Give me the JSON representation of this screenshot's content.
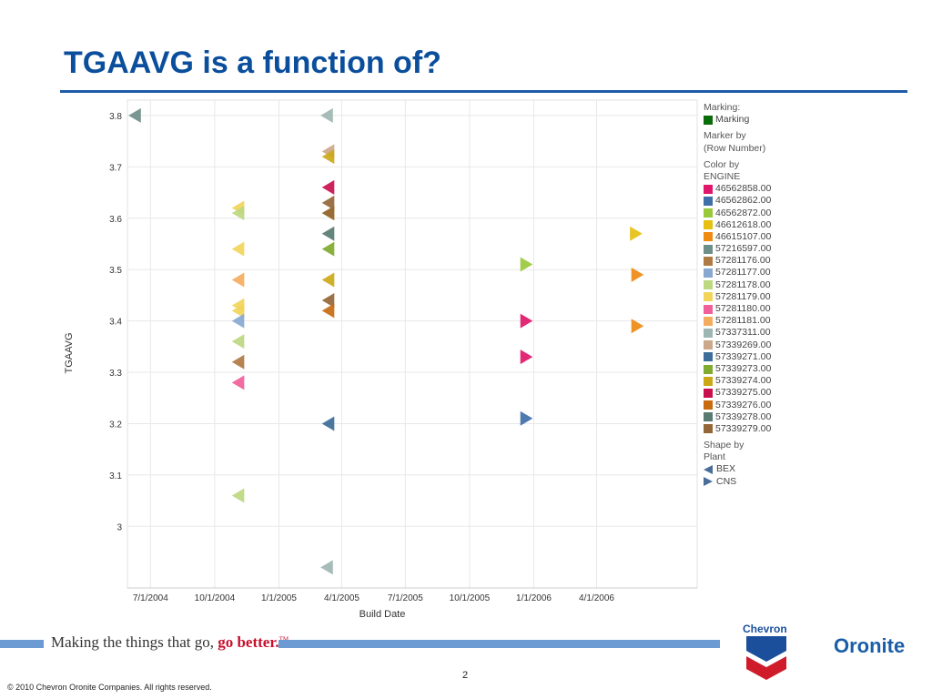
{
  "slide": {
    "title": "TGAAVG is a function of?",
    "page_number": "2",
    "copyright": "© 2010 Chevron Oronite Companies. All rights reserved.",
    "tagline_main": "Making the things that go, ",
    "tagline_accent": "go better.",
    "tagline_tm": "TM",
    "logo_chevron": "Chevron",
    "logo_oronite": "Oronite",
    "colors": {
      "title": "#0b4f9c",
      "rule": "#1f5aa6",
      "bar": "#6b9bd2",
      "accent": "#c8102e"
    }
  },
  "legend": {
    "marking_title": "Marking:",
    "marking_item": "Marking",
    "marking_color": "#0a6b0a",
    "marker_title_1": "Marker by",
    "marker_title_2": "(Row Number)",
    "color_title_1": "Color by",
    "color_title_2": "ENGINE",
    "engines": [
      {
        "label": "46562858.00",
        "color": "#e0176a"
      },
      {
        "label": "46562862.00",
        "color": "#3f6fa8"
      },
      {
        "label": "46562872.00",
        "color": "#9ac83c"
      },
      {
        "label": "46612618.00",
        "color": "#e6c012"
      },
      {
        "label": "46615107.00",
        "color": "#ef8a12"
      },
      {
        "label": "57216597.00",
        "color": "#6e8e8a"
      },
      {
        "label": "57281176.00",
        "color": "#b07a44"
      },
      {
        "label": "57281177.00",
        "color": "#88a8d0"
      },
      {
        "label": "57281178.00",
        "color": "#bcd880"
      },
      {
        "label": "57281179.00",
        "color": "#f2d45a"
      },
      {
        "label": "57281180.00",
        "color": "#f0609a"
      },
      {
        "label": "57281181.00",
        "color": "#f4ac60"
      },
      {
        "label": "57337311.00",
        "color": "#9eb6b2"
      },
      {
        "label": "57339269.00",
        "color": "#cca88a"
      },
      {
        "label": "57339271.00",
        "color": "#3d6d98"
      },
      {
        "label": "57339273.00",
        "color": "#80aa30"
      },
      {
        "label": "57339274.00",
        "color": "#cca818"
      },
      {
        "label": "57339275.00",
        "color": "#c8104e"
      },
      {
        "label": "57339276.00",
        "color": "#c86a10"
      },
      {
        "label": "57339278.00",
        "color": "#587a70"
      },
      {
        "label": "57339279.00",
        "color": "#946638"
      }
    ],
    "shape_title_1": "Shape by",
    "shape_title_2": "Plant",
    "shapes": [
      {
        "label": "BEX",
        "shape": "triangle-left",
        "color": "#4a6e9a"
      },
      {
        "label": "CNS",
        "shape": "triangle-right",
        "color": "#4a6e9a"
      }
    ]
  },
  "chart_data": {
    "type": "scatter",
    "title": "",
    "xlabel": "Build Date",
    "ylabel": "TGAAVG",
    "x_ticks": [
      "7/1/2004",
      "10/1/2004",
      "1/1/2005",
      "4/1/2005",
      "7/1/2005",
      "10/1/2005",
      "1/1/2006",
      "4/1/2006"
    ],
    "y_ticks": [
      "3",
      "3.1",
      "3.2",
      "3.3",
      "3.4",
      "3.5",
      "3.6",
      "3.7",
      "3.8"
    ],
    "ylim": [
      2.88,
      3.83
    ],
    "xlim": [
      "2004-05-29",
      "2006-08-23"
    ],
    "grid": true,
    "legend_position": "right",
    "points": [
      {
        "x": "2004-06-10",
        "y": 3.8,
        "engine": "57216597.00",
        "plant": "BEX"
      },
      {
        "x": "2004-11-05",
        "y": 3.62,
        "engine": "57281179.00",
        "plant": "BEX"
      },
      {
        "x": "2004-11-05",
        "y": 3.61,
        "engine": "57281178.00",
        "plant": "BEX"
      },
      {
        "x": "2004-11-05",
        "y": 3.54,
        "engine": "57281179.00",
        "plant": "BEX"
      },
      {
        "x": "2004-11-05",
        "y": 3.48,
        "engine": "57281181.00",
        "plant": "BEX"
      },
      {
        "x": "2004-11-05",
        "y": 3.43,
        "engine": "57281179.00",
        "plant": "BEX"
      },
      {
        "x": "2004-11-05",
        "y": 3.42,
        "engine": "57281179.00",
        "plant": "BEX"
      },
      {
        "x": "2004-11-05",
        "y": 3.4,
        "engine": "57281177.00",
        "plant": "BEX"
      },
      {
        "x": "2004-11-05",
        "y": 3.36,
        "engine": "57281178.00",
        "plant": "BEX"
      },
      {
        "x": "2004-11-05",
        "y": 3.32,
        "engine": "57281176.00",
        "plant": "BEX"
      },
      {
        "x": "2004-11-05",
        "y": 3.28,
        "engine": "57281180.00",
        "plant": "BEX"
      },
      {
        "x": "2004-11-05",
        "y": 3.06,
        "engine": "57281178.00",
        "plant": "BEX"
      },
      {
        "x": "2005-03-12",
        "y": 3.8,
        "engine": "57337311.00",
        "plant": "BEX"
      },
      {
        "x": "2005-03-14",
        "y": 3.73,
        "engine": "57339269.00",
        "plant": "BEX"
      },
      {
        "x": "2005-03-14",
        "y": 3.72,
        "engine": "57339274.00",
        "plant": "BEX"
      },
      {
        "x": "2005-03-14",
        "y": 3.66,
        "engine": "57339275.00",
        "plant": "BEX"
      },
      {
        "x": "2005-03-14",
        "y": 3.63,
        "engine": "57339279.00",
        "plant": "BEX"
      },
      {
        "x": "2005-03-14",
        "y": 3.61,
        "engine": "57339274.00",
        "plant": "BEX"
      },
      {
        "x": "2005-03-14",
        "y": 3.61,
        "engine": "57339279.00",
        "plant": "BEX"
      },
      {
        "x": "2005-03-14",
        "y": 3.57,
        "engine": "57339278.00",
        "plant": "BEX"
      },
      {
        "x": "2005-03-14",
        "y": 3.54,
        "engine": "57339273.00",
        "plant": "BEX"
      },
      {
        "x": "2005-03-14",
        "y": 3.48,
        "engine": "57339274.00",
        "plant": "BEX"
      },
      {
        "x": "2005-03-14",
        "y": 3.44,
        "engine": "57339279.00",
        "plant": "BEX"
      },
      {
        "x": "2005-03-14",
        "y": 3.42,
        "engine": "57339276.00",
        "plant": "BEX"
      },
      {
        "x": "2005-03-14",
        "y": 3.2,
        "engine": "57339271.00",
        "plant": "BEX"
      },
      {
        "x": "2005-03-12",
        "y": 2.92,
        "engine": "57337311.00",
        "plant": "BEX"
      },
      {
        "x": "2005-12-20",
        "y": 3.51,
        "engine": "46562872.00",
        "plant": "CNS"
      },
      {
        "x": "2005-12-20",
        "y": 3.4,
        "engine": "46562858.00",
        "plant": "CNS"
      },
      {
        "x": "2005-12-20",
        "y": 3.33,
        "engine": "46562858.00",
        "plant": "CNS"
      },
      {
        "x": "2005-12-20",
        "y": 3.21,
        "engine": "46562862.00",
        "plant": "CNS"
      },
      {
        "x": "2006-05-26",
        "y": 3.57,
        "engine": "46612618.00",
        "plant": "CNS"
      },
      {
        "x": "2006-05-28",
        "y": 3.49,
        "engine": "46615107.00",
        "plant": "CNS"
      },
      {
        "x": "2006-05-28",
        "y": 3.39,
        "engine": "46615107.00",
        "plant": "CNS"
      }
    ]
  }
}
